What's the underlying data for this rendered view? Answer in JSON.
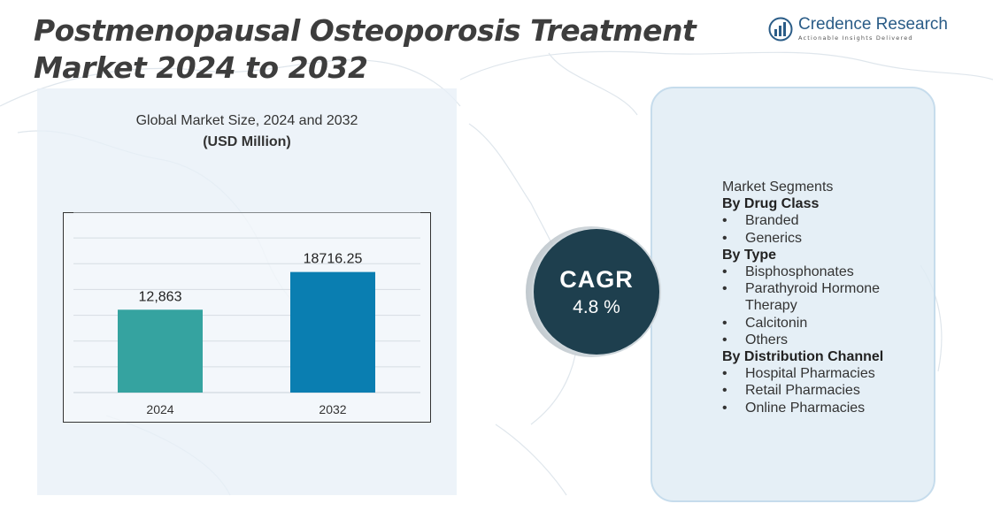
{
  "title": "Postmenopausal Osteoporosis Treatment Market 2024 to 2032",
  "logo": {
    "name": "Credence Research",
    "tagline": "Actionable Insights Delivered"
  },
  "chart_title": "Global Market Size,  2024 and 2032",
  "chart_unit": "(USD Million)",
  "chart_data": {
    "type": "bar",
    "categories": [
      "2024",
      "2032"
    ],
    "values": [
      12863,
      18716.25
    ],
    "value_labels": [
      "12,863",
      "18716.25"
    ],
    "colors": [
      "#35a3a0",
      "#0a7eb1"
    ],
    "ylim": [
      0,
      28000
    ],
    "grid": true
  },
  "cagr": {
    "label": "CAGR",
    "value": "4.8 %"
  },
  "segments": {
    "heading": "Market Segments",
    "groups": [
      {
        "title": "By Drug Class",
        "items": [
          "Branded",
          "Generics"
        ]
      },
      {
        "title": "By Type",
        "items": [
          "Bisphosphonates",
          "Parathyroid Hormone Therapy",
          "Calcitonin",
          "Others"
        ]
      },
      {
        "title": "By Distribution Channel",
        "items": [
          "Hospital Pharmacies",
          "Retail Pharmacies",
          "Online Pharmacies"
        ]
      }
    ]
  },
  "colors": {
    "title": "#3d3d3d",
    "cagr_circle": "#1e3f4e",
    "panel": "#e0ecf5"
  }
}
